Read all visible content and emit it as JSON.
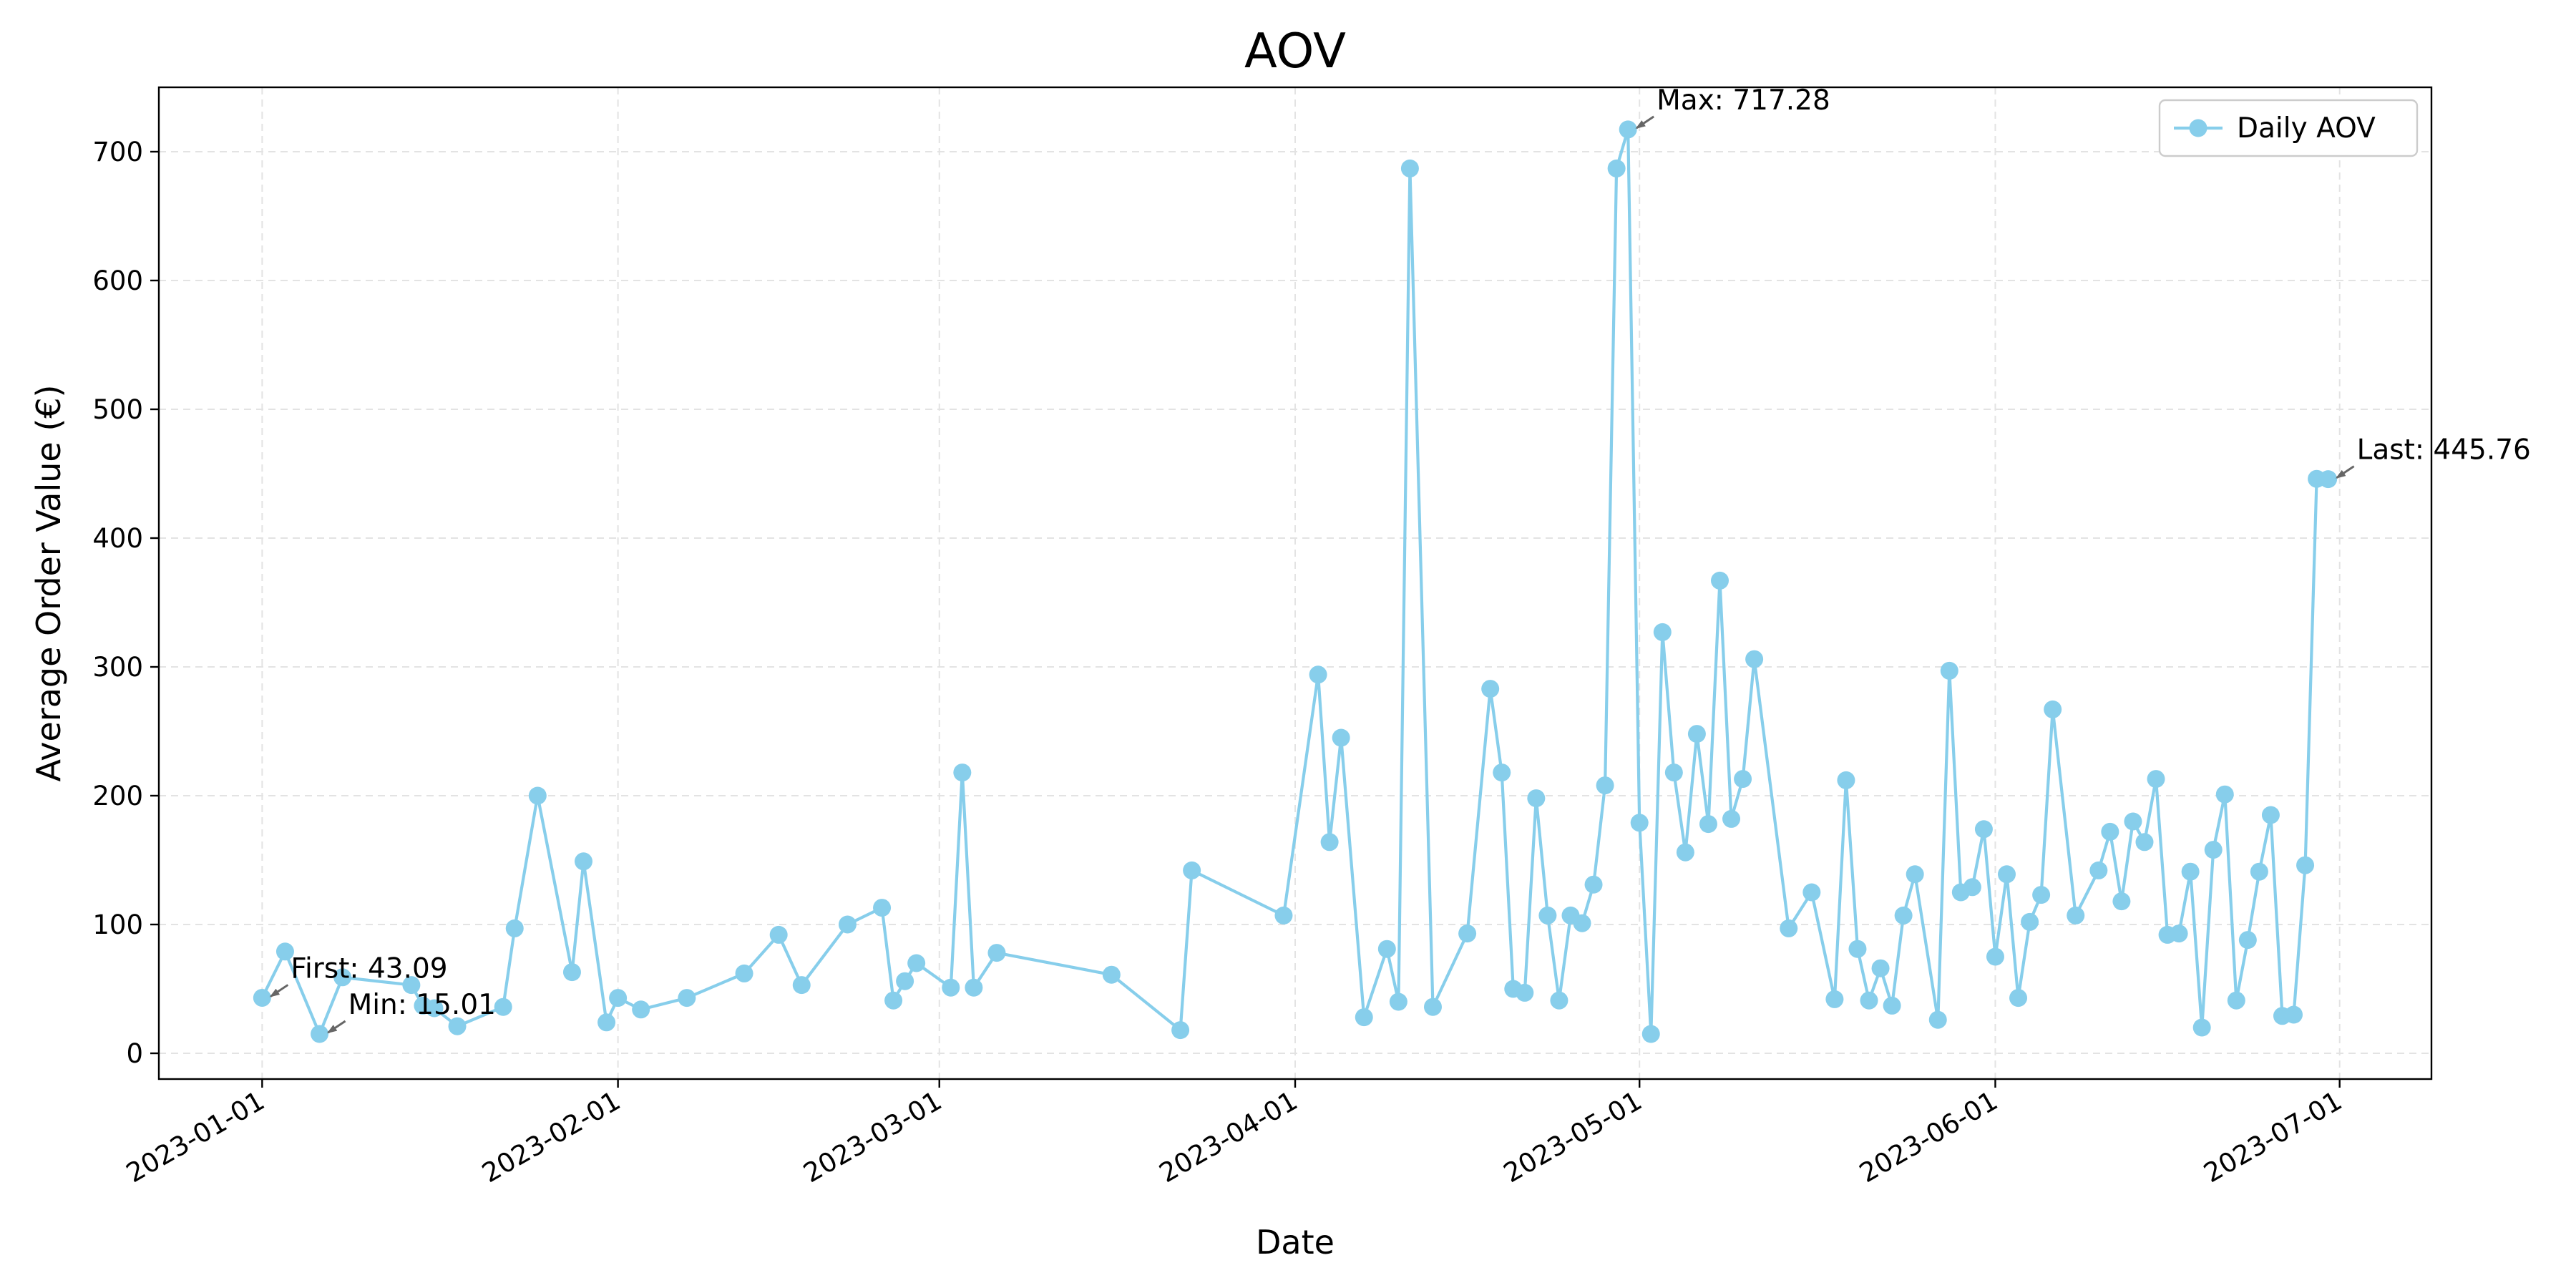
{
  "chart_data": {
    "type": "line",
    "title": "AOV",
    "xlabel": "Date",
    "ylabel": "Average Order Value (€)",
    "xlim": [
      "2022-12-23",
      "2023-07-09"
    ],
    "ylim": [
      -20,
      750
    ],
    "grid": true,
    "legend_position": "upper-right",
    "x_ticks": [
      "2023-01-01",
      "2023-02-01",
      "2023-03-01",
      "2023-04-01",
      "2023-05-01",
      "2023-06-01",
      "2023-07-01"
    ],
    "y_ticks": [
      0,
      100,
      200,
      300,
      400,
      500,
      600,
      700
    ],
    "series": [
      {
        "name": "Daily AOV",
        "color": "#87ceeb",
        "marker": "circle",
        "x": [
          "2023-01-01",
          "2023-01-03",
          "2023-01-06",
          "2023-01-08",
          "2023-01-14",
          "2023-01-15",
          "2023-01-16",
          "2023-01-18",
          "2023-01-22",
          "2023-01-23",
          "2023-01-25",
          "2023-01-28",
          "2023-01-29",
          "2023-01-31",
          "2023-02-01",
          "2023-02-03",
          "2023-02-07",
          "2023-02-12",
          "2023-02-15",
          "2023-02-17",
          "2023-02-21",
          "2023-02-24",
          "2023-02-25",
          "2023-02-26",
          "2023-02-27",
          "2023-03-02",
          "2023-03-03",
          "2023-03-04",
          "2023-03-06",
          "2023-03-16",
          "2023-03-22",
          "2023-03-23",
          "2023-03-31",
          "2023-04-03",
          "2023-04-04",
          "2023-04-05",
          "2023-04-07",
          "2023-04-09",
          "2023-04-10",
          "2023-04-11",
          "2023-04-13",
          "2023-04-16",
          "2023-04-18",
          "2023-04-19",
          "2023-04-20",
          "2023-04-21",
          "2023-04-22",
          "2023-04-23",
          "2023-04-24",
          "2023-04-25",
          "2023-04-26",
          "2023-04-27",
          "2023-04-28",
          "2023-04-29",
          "2023-04-30",
          "2023-05-01",
          "2023-05-02",
          "2023-05-03",
          "2023-05-04",
          "2023-05-05",
          "2023-05-06",
          "2023-05-07",
          "2023-05-08",
          "2023-05-09",
          "2023-05-10",
          "2023-05-11",
          "2023-05-14",
          "2023-05-16",
          "2023-05-18",
          "2023-05-19",
          "2023-05-20",
          "2023-05-21",
          "2023-05-22",
          "2023-05-23",
          "2023-05-24",
          "2023-05-25",
          "2023-05-27",
          "2023-05-28",
          "2023-05-29",
          "2023-05-30",
          "2023-05-31",
          "2023-06-01",
          "2023-06-02",
          "2023-06-03",
          "2023-06-04",
          "2023-06-05",
          "2023-06-06",
          "2023-06-08",
          "2023-06-10",
          "2023-06-11",
          "2023-06-12",
          "2023-06-13",
          "2023-06-14",
          "2023-06-15",
          "2023-06-16",
          "2023-06-17",
          "2023-06-18",
          "2023-06-19",
          "2023-06-20",
          "2023-06-21",
          "2023-06-22",
          "2023-06-23",
          "2023-06-24",
          "2023-06-25",
          "2023-06-26",
          "2023-06-27",
          "2023-06-28",
          "2023-06-29",
          "2023-06-30"
        ],
        "y": [
          43.09,
          79,
          15.01,
          59,
          53,
          37,
          35,
          21,
          36,
          97,
          200,
          63,
          149,
          24,
          43,
          34,
          43,
          62,
          92,
          53,
          100,
          113,
          41,
          56,
          70,
          51,
          218,
          51,
          78,
          61,
          18,
          142,
          107,
          294,
          164,
          245,
          28,
          81,
          40,
          687,
          36,
          93,
          283,
          218,
          50,
          47,
          198,
          107,
          41,
          107,
          101,
          131,
          208,
          687,
          717.28,
          179,
          15,
          327,
          218,
          156,
          248,
          178,
          367,
          182,
          213,
          306,
          97,
          125,
          42,
          212,
          81,
          41,
          66,
          37,
          107,
          139,
          26,
          297,
          125,
          129,
          174,
          75,
          139,
          43,
          102,
          123,
          267,
          107,
          142,
          172,
          118,
          180,
          164,
          213,
          92,
          93,
          141,
          20,
          158,
          201,
          41,
          88,
          141,
          185,
          29,
          30,
          146,
          446,
          445.76
        ]
      }
    ],
    "annotations": [
      {
        "text": "First: 43.09",
        "x": "2023-01-01",
        "y": 43.09
      },
      {
        "text": "Min: 15.01",
        "x": "2023-01-06",
        "y": 15.01
      },
      {
        "text": "Max: 717.28",
        "x": "2023-04-30",
        "y": 717.28
      },
      {
        "text": "Last: 445.76",
        "x": "2023-06-30",
        "y": 445.76
      }
    ]
  }
}
